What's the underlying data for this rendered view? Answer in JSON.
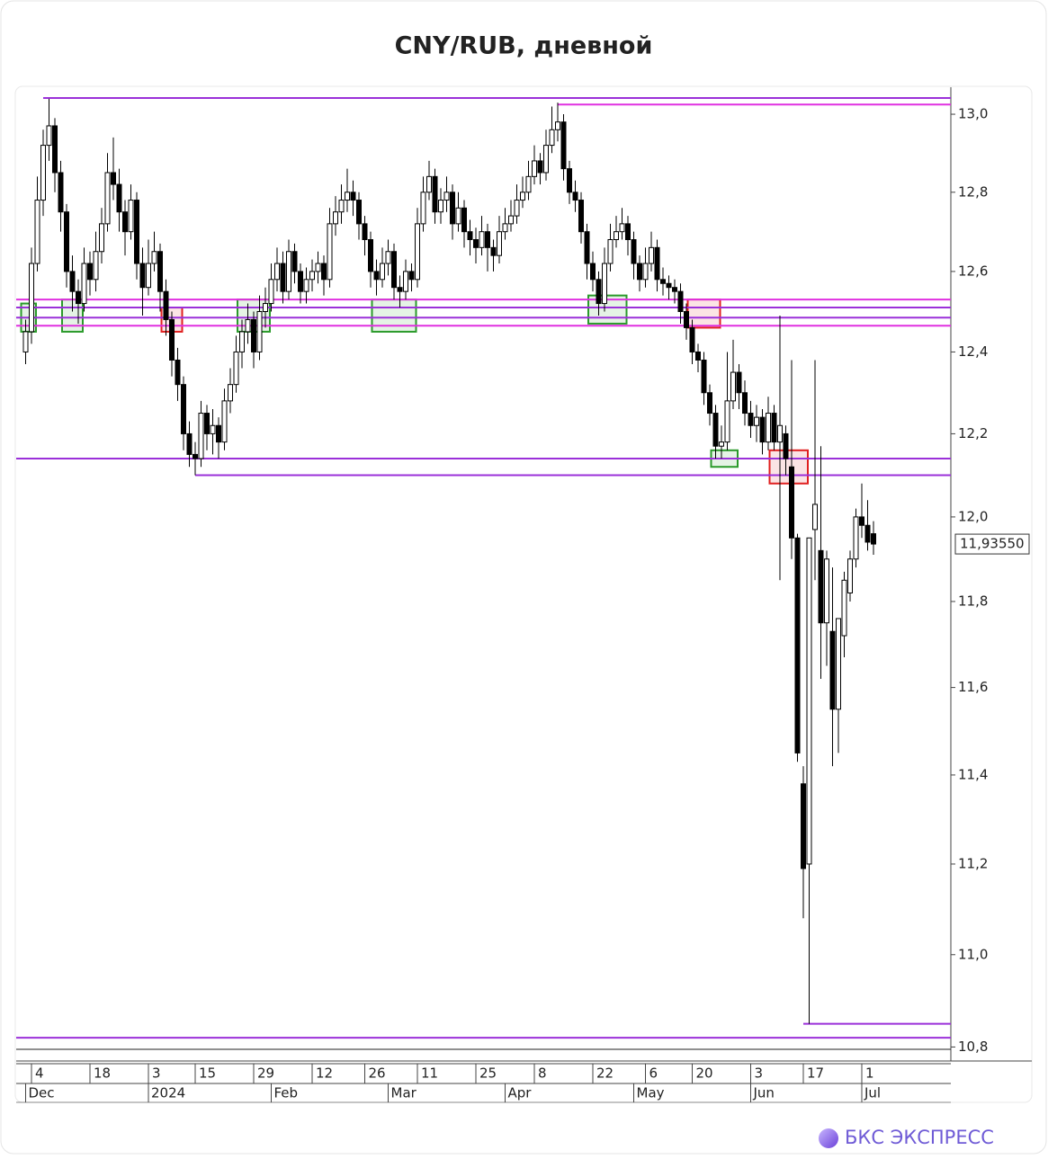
{
  "chart_data": {
    "type": "candlestick",
    "title": "CNY/RUB, дневной",
    "brand": "БКС ЭКСПРЕСС",
    "log_scale": true,
    "ylim": [
      10.77,
      13.07
    ],
    "yticks": [
      {
        "value": 13.0,
        "label": "13,0"
      },
      {
        "value": 12.8,
        "label": "12,8"
      },
      {
        "value": 12.6,
        "label": "12,6"
      },
      {
        "value": 12.4,
        "label": "12,4"
      },
      {
        "value": 12.2,
        "label": "12,2"
      },
      {
        "value": 12.0,
        "label": "12,0"
      },
      {
        "value": 11.8,
        "label": "11,8"
      },
      {
        "value": 11.6,
        "label": "11,6"
      },
      {
        "value": 11.4,
        "label": "11,4"
      },
      {
        "value": 11.2,
        "label": "11,2"
      },
      {
        "value": 11.0,
        "label": "11,0"
      },
      {
        "value": 10.8,
        "label": "10,8"
      }
    ],
    "up_color": "#ffffff",
    "down_color": "#000000",
    "last_price": {
      "value": 11.9355,
      "label": "11,93550"
    },
    "categories": [
      null,
      "4",
      null,
      null,
      null,
      null,
      null,
      null,
      null,
      null,
      null,
      "18",
      null,
      null,
      null,
      null,
      null,
      null,
      null,
      null,
      null,
      "3",
      null,
      null,
      null,
      null,
      null,
      null,
      null,
      "15",
      null,
      null,
      null,
      null,
      null,
      null,
      null,
      null,
      null,
      "29",
      null,
      null,
      null,
      null,
      null,
      null,
      null,
      null,
      null,
      "12",
      null,
      null,
      null,
      null,
      null,
      null,
      null,
      null,
      "26",
      null,
      null,
      null,
      null,
      null,
      null,
      null,
      null,
      "11",
      null,
      null,
      null,
      null,
      null,
      null,
      null,
      null,
      null,
      "25",
      null,
      null,
      null,
      null,
      null,
      null,
      null,
      null,
      null,
      "8",
      null,
      null,
      null,
      null,
      null,
      null,
      null,
      null,
      null,
      "22",
      null,
      null,
      null,
      null,
      null,
      null,
      null,
      null,
      "6",
      null,
      null,
      null,
      null,
      null,
      null,
      null,
      "20",
      null,
      null,
      null,
      null,
      null,
      null,
      null,
      null,
      null,
      "3",
      null,
      null,
      null,
      null,
      null,
      null,
      null,
      null,
      "17",
      null,
      null,
      null,
      null,
      null,
      null,
      null,
      null,
      null,
      "1",
      null,
      null
    ],
    "months": [
      "Dec",
      null,
      null,
      null,
      null,
      null,
      null,
      null,
      null,
      null,
      null,
      null,
      null,
      null,
      null,
      null,
      null,
      null,
      null,
      null,
      null,
      "2024",
      null,
      null,
      null,
      null,
      null,
      null,
      null,
      null,
      null,
      null,
      null,
      null,
      null,
      null,
      null,
      null,
      null,
      null,
      null,
      null,
      "Feb",
      null,
      null,
      null,
      null,
      null,
      null,
      null,
      null,
      null,
      null,
      null,
      null,
      null,
      null,
      null,
      null,
      null,
      null,
      null,
      "Mar",
      null,
      null,
      null,
      null,
      null,
      null,
      null,
      null,
      null,
      null,
      null,
      null,
      null,
      null,
      null,
      null,
      null,
      null,
      null,
      "Apr",
      null,
      null,
      null,
      null,
      null,
      null,
      null,
      null,
      null,
      null,
      null,
      null,
      null,
      null,
      null,
      null,
      null,
      null,
      null,
      null,
      null,
      "May",
      null,
      null,
      null,
      null,
      null,
      null,
      null,
      null,
      null,
      null,
      null,
      null,
      null,
      null,
      null,
      null,
      null,
      null,
      null,
      "Jun",
      null,
      null,
      null,
      null,
      null,
      null,
      null,
      null,
      null,
      null,
      null,
      null,
      null,
      null,
      null,
      null,
      null,
      null,
      "Jul",
      null,
      null
    ],
    "ohlc": [
      [
        12.4,
        12.48,
        12.37,
        12.45
      ],
      [
        12.45,
        12.66,
        12.42,
        12.62
      ],
      [
        12.62,
        12.84,
        12.6,
        12.78
      ],
      [
        12.78,
        12.96,
        12.74,
        12.92
      ],
      [
        12.92,
        13.04,
        12.88,
        12.97
      ],
      [
        12.97,
        12.99,
        12.8,
        12.85
      ],
      [
        12.85,
        12.88,
        12.7,
        12.75
      ],
      [
        12.75,
        12.77,
        12.56,
        12.6
      ],
      [
        12.6,
        12.64,
        12.5,
        12.55
      ],
      [
        12.55,
        12.58,
        12.47,
        12.52
      ],
      [
        12.52,
        12.66,
        12.5,
        12.62
      ],
      [
        12.62,
        12.65,
        12.54,
        12.58
      ],
      [
        12.58,
        12.7,
        12.55,
        12.65
      ],
      [
        12.65,
        12.76,
        12.62,
        12.72
      ],
      [
        12.72,
        12.9,
        12.7,
        12.85
      ],
      [
        12.85,
        12.94,
        12.78,
        12.82
      ],
      [
        12.82,
        12.86,
        12.7,
        12.75
      ],
      [
        12.75,
        12.78,
        12.64,
        12.7
      ],
      [
        12.7,
        12.82,
        12.68,
        12.78
      ],
      [
        12.78,
        12.8,
        12.58,
        12.62
      ],
      [
        12.62,
        12.66,
        12.49,
        12.56
      ],
      [
        12.56,
        12.68,
        12.54,
        12.62
      ],
      [
        12.62,
        12.7,
        12.6,
        12.65
      ],
      [
        12.65,
        12.67,
        12.5,
        12.55
      ],
      [
        12.55,
        12.58,
        12.44,
        12.48
      ],
      [
        12.48,
        12.5,
        12.34,
        12.38
      ],
      [
        12.38,
        12.41,
        12.28,
        12.32
      ],
      [
        12.32,
        12.34,
        12.16,
        12.2
      ],
      [
        12.2,
        12.23,
        12.12,
        12.15
      ],
      [
        12.15,
        12.18,
        12.1,
        12.14
      ],
      [
        12.14,
        12.28,
        12.12,
        12.25
      ],
      [
        12.25,
        12.27,
        12.16,
        12.2
      ],
      [
        12.2,
        12.26,
        12.15,
        12.22
      ],
      [
        12.22,
        12.24,
        12.14,
        12.18
      ],
      [
        12.18,
        12.31,
        12.16,
        12.28
      ],
      [
        12.28,
        12.36,
        12.25,
        12.32
      ],
      [
        12.32,
        12.44,
        12.3,
        12.4
      ],
      [
        12.4,
        12.48,
        12.36,
        12.45
      ],
      [
        12.45,
        12.52,
        12.42,
        12.48
      ],
      [
        12.48,
        12.5,
        12.36,
        12.4
      ],
      [
        12.4,
        12.54,
        12.38,
        12.5
      ],
      [
        12.5,
        12.56,
        12.46,
        12.52
      ],
      [
        12.52,
        12.62,
        12.5,
        12.58
      ],
      [
        12.58,
        12.66,
        12.55,
        12.62
      ],
      [
        12.62,
        12.65,
        12.52,
        12.55
      ],
      [
        12.55,
        12.68,
        12.53,
        12.65
      ],
      [
        12.65,
        12.67,
        12.57,
        12.6
      ],
      [
        12.6,
        12.62,
        12.52,
        12.55
      ],
      [
        12.55,
        12.61,
        12.52,
        12.58
      ],
      [
        12.58,
        12.63,
        12.55,
        12.6
      ],
      [
        12.6,
        12.65,
        12.57,
        12.62
      ],
      [
        12.62,
        12.64,
        12.54,
        12.58
      ],
      [
        12.58,
        12.76,
        12.56,
        12.72
      ],
      [
        12.72,
        12.79,
        12.69,
        12.75
      ],
      [
        12.75,
        12.82,
        12.72,
        12.78
      ],
      [
        12.78,
        12.86,
        12.75,
        12.8
      ],
      [
        12.8,
        12.83,
        12.74,
        12.78
      ],
      [
        12.78,
        12.8,
        12.68,
        12.72
      ],
      [
        12.72,
        12.74,
        12.64,
        12.68
      ],
      [
        12.68,
        12.7,
        12.56,
        12.6
      ],
      [
        12.6,
        12.63,
        12.54,
        12.58
      ],
      [
        12.58,
        12.66,
        12.56,
        12.62
      ],
      [
        12.62,
        12.68,
        12.59,
        12.65
      ],
      [
        12.65,
        12.67,
        12.53,
        12.56
      ],
      [
        12.56,
        12.59,
        12.51,
        12.55
      ],
      [
        12.55,
        12.63,
        12.53,
        12.6
      ],
      [
        12.6,
        12.62,
        12.55,
        12.58
      ],
      [
        12.58,
        12.76,
        12.56,
        12.72
      ],
      [
        12.72,
        12.84,
        12.7,
        12.8
      ],
      [
        12.8,
        12.88,
        12.78,
        12.84
      ],
      [
        12.84,
        12.86,
        12.72,
        12.75
      ],
      [
        12.75,
        12.81,
        12.72,
        12.78
      ],
      [
        12.78,
        12.84,
        12.75,
        12.8
      ],
      [
        12.8,
        12.82,
        12.68,
        12.72
      ],
      [
        12.72,
        12.8,
        12.7,
        12.76
      ],
      [
        12.76,
        12.78,
        12.66,
        12.7
      ],
      [
        12.7,
        12.73,
        12.64,
        12.68
      ],
      [
        12.68,
        12.71,
        12.62,
        12.66
      ],
      [
        12.66,
        12.74,
        12.64,
        12.7
      ],
      [
        12.7,
        12.72,
        12.6,
        12.66
      ],
      [
        12.66,
        12.68,
        12.6,
        12.64
      ],
      [
        12.64,
        12.74,
        12.62,
        12.7
      ],
      [
        12.7,
        12.76,
        12.68,
        12.72
      ],
      [
        12.72,
        12.78,
        12.7,
        12.74
      ],
      [
        12.74,
        12.82,
        12.72,
        12.78
      ],
      [
        12.78,
        12.84,
        12.76,
        12.8
      ],
      [
        12.8,
        12.88,
        12.78,
        12.84
      ],
      [
        12.84,
        12.92,
        12.82,
        12.88
      ],
      [
        12.88,
        12.9,
        12.82,
        12.85
      ],
      [
        12.85,
        12.96,
        12.83,
        12.92
      ],
      [
        12.92,
        13.02,
        12.9,
        12.96
      ],
      [
        12.96,
        13.03,
        12.93,
        12.98
      ],
      [
        12.98,
        13.0,
        12.83,
        12.86
      ],
      [
        12.86,
        12.88,
        12.77,
        12.8
      ],
      [
        12.8,
        12.83,
        12.75,
        12.78
      ],
      [
        12.78,
        12.8,
        12.67,
        12.7
      ],
      [
        12.7,
        12.72,
        12.58,
        12.62
      ],
      [
        12.62,
        12.65,
        12.55,
        12.58
      ],
      [
        12.58,
        12.6,
        12.49,
        12.52
      ],
      [
        12.52,
        12.66,
        12.5,
        12.62
      ],
      [
        12.62,
        12.72,
        12.6,
        12.68
      ],
      [
        12.68,
        12.74,
        12.66,
        12.7
      ],
      [
        12.7,
        12.76,
        12.68,
        12.72
      ],
      [
        12.72,
        12.74,
        12.64,
        12.68
      ],
      [
        12.68,
        12.7,
        12.58,
        12.62
      ],
      [
        12.62,
        12.64,
        12.55,
        12.58
      ],
      [
        12.58,
        12.66,
        12.56,
        12.62
      ],
      [
        12.62,
        12.7,
        12.6,
        12.66
      ],
      [
        12.66,
        12.68,
        12.55,
        12.58
      ],
      [
        12.58,
        12.61,
        12.54,
        12.57
      ],
      [
        12.57,
        12.59,
        12.53,
        12.56
      ],
      [
        12.56,
        12.58,
        12.52,
        12.55
      ],
      [
        12.55,
        12.57,
        12.47,
        12.5
      ],
      [
        12.5,
        12.52,
        12.43,
        12.46
      ],
      [
        12.46,
        12.48,
        12.37,
        12.4
      ],
      [
        12.4,
        12.42,
        12.35,
        12.38
      ],
      [
        12.38,
        12.4,
        12.27,
        12.3
      ],
      [
        12.3,
        12.32,
        12.22,
        12.25
      ],
      [
        12.25,
        12.27,
        12.14,
        12.17
      ],
      [
        12.17,
        12.22,
        12.14,
        12.18
      ],
      [
        12.18,
        12.4,
        12.16,
        12.28
      ],
      [
        12.28,
        12.43,
        12.26,
        12.35
      ],
      [
        12.35,
        12.37,
        12.26,
        12.3
      ],
      [
        12.3,
        12.33,
        12.22,
        12.25
      ],
      [
        12.25,
        12.28,
        12.19,
        12.22
      ],
      [
        12.22,
        12.27,
        12.18,
        12.24
      ],
      [
        12.24,
        12.26,
        12.15,
        12.18
      ],
      [
        12.18,
        12.29,
        12.16,
        12.25
      ],
      [
        12.25,
        12.27,
        12.16,
        12.18
      ],
      [
        12.18,
        12.49,
        11.85,
        12.22
      ],
      [
        12.2,
        12.22,
        12.1,
        12.14
      ],
      [
        12.12,
        12.38,
        11.9,
        11.95
      ],
      [
        11.95,
        11.96,
        11.43,
        11.45
      ],
      [
        11.38,
        11.42,
        11.08,
        11.19
      ],
      [
        11.2,
        11.95,
        10.85,
        11.95
      ],
      [
        11.97,
        12.38,
        11.85,
        12.03
      ],
      [
        11.92,
        12.17,
        11.62,
        11.75
      ],
      [
        11.75,
        11.92,
        11.65,
        11.9
      ],
      [
        11.73,
        11.88,
        11.42,
        11.55
      ],
      [
        11.55,
        11.76,
        11.45,
        11.76
      ],
      [
        11.72,
        11.87,
        11.67,
        11.85
      ],
      [
        11.82,
        11.92,
        11.8,
        11.9
      ],
      [
        11.9,
        12.02,
        11.88,
        12.0
      ],
      [
        12.0,
        12.08,
        11.95,
        11.98
      ],
      [
        11.98,
        12.04,
        11.92,
        11.94
      ],
      [
        11.96,
        11.99,
        11.91,
        11.9355
      ]
    ],
    "levels": [
      {
        "value": 13.042,
        "color": "#9b30d9",
        "from": 3
      },
      {
        "value": 13.025,
        "color": "#e030e0",
        "from": 91
      },
      {
        "value": 12.53,
        "color": "#e030e0",
        "from": 0
      },
      {
        "value": 12.51,
        "color": "#9b30d9",
        "from": 0
      },
      {
        "value": 12.485,
        "color": "#9b30d9",
        "from": 0
      },
      {
        "value": 12.465,
        "color": "#e030e0",
        "from": 0
      },
      {
        "value": 12.14,
        "color": "#9b30d9",
        "from": 0
      },
      {
        "value": 12.1,
        "color": "#9b30d9",
        "from": 29
      },
      {
        "value": 10.85,
        "color": "#9b30d9",
        "from": 133
      },
      {
        "value": 10.82,
        "color": "#9b30d9",
        "from": 0
      }
    ],
    "zones": [
      {
        "x_range": [
          0,
          1
        ],
        "y_range": [
          12.45,
          12.52
        ],
        "color": "#2a9a2a"
      },
      {
        "x_range": [
          7,
          9
        ],
        "y_range": [
          12.45,
          12.53
        ],
        "color": "#2a9a2a"
      },
      {
        "x_range": [
          24,
          26
        ],
        "y_range": [
          12.45,
          12.51
        ],
        "color": "#e02020"
      },
      {
        "x_range": [
          37,
          41
        ],
        "y_range": [
          12.45,
          12.53
        ],
        "color": "#2a9a2a"
      },
      {
        "x_range": [
          60,
          66
        ],
        "y_range": [
          12.45,
          12.53
        ],
        "color": "#2a9a2a"
      },
      {
        "x_range": [
          97,
          102
        ],
        "y_range": [
          12.47,
          12.54
        ],
        "color": "#2a9a2a"
      },
      {
        "x_range": [
          114,
          118
        ],
        "y_range": [
          12.46,
          12.53
        ],
        "color": "#e02020"
      },
      {
        "x_range": [
          118,
          121
        ],
        "y_range": [
          12.12,
          12.16
        ],
        "color": "#2a9a2a"
      },
      {
        "x_range": [
          128,
          133
        ],
        "y_range": [
          12.08,
          12.16
        ],
        "color": "#e02020"
      }
    ]
  }
}
